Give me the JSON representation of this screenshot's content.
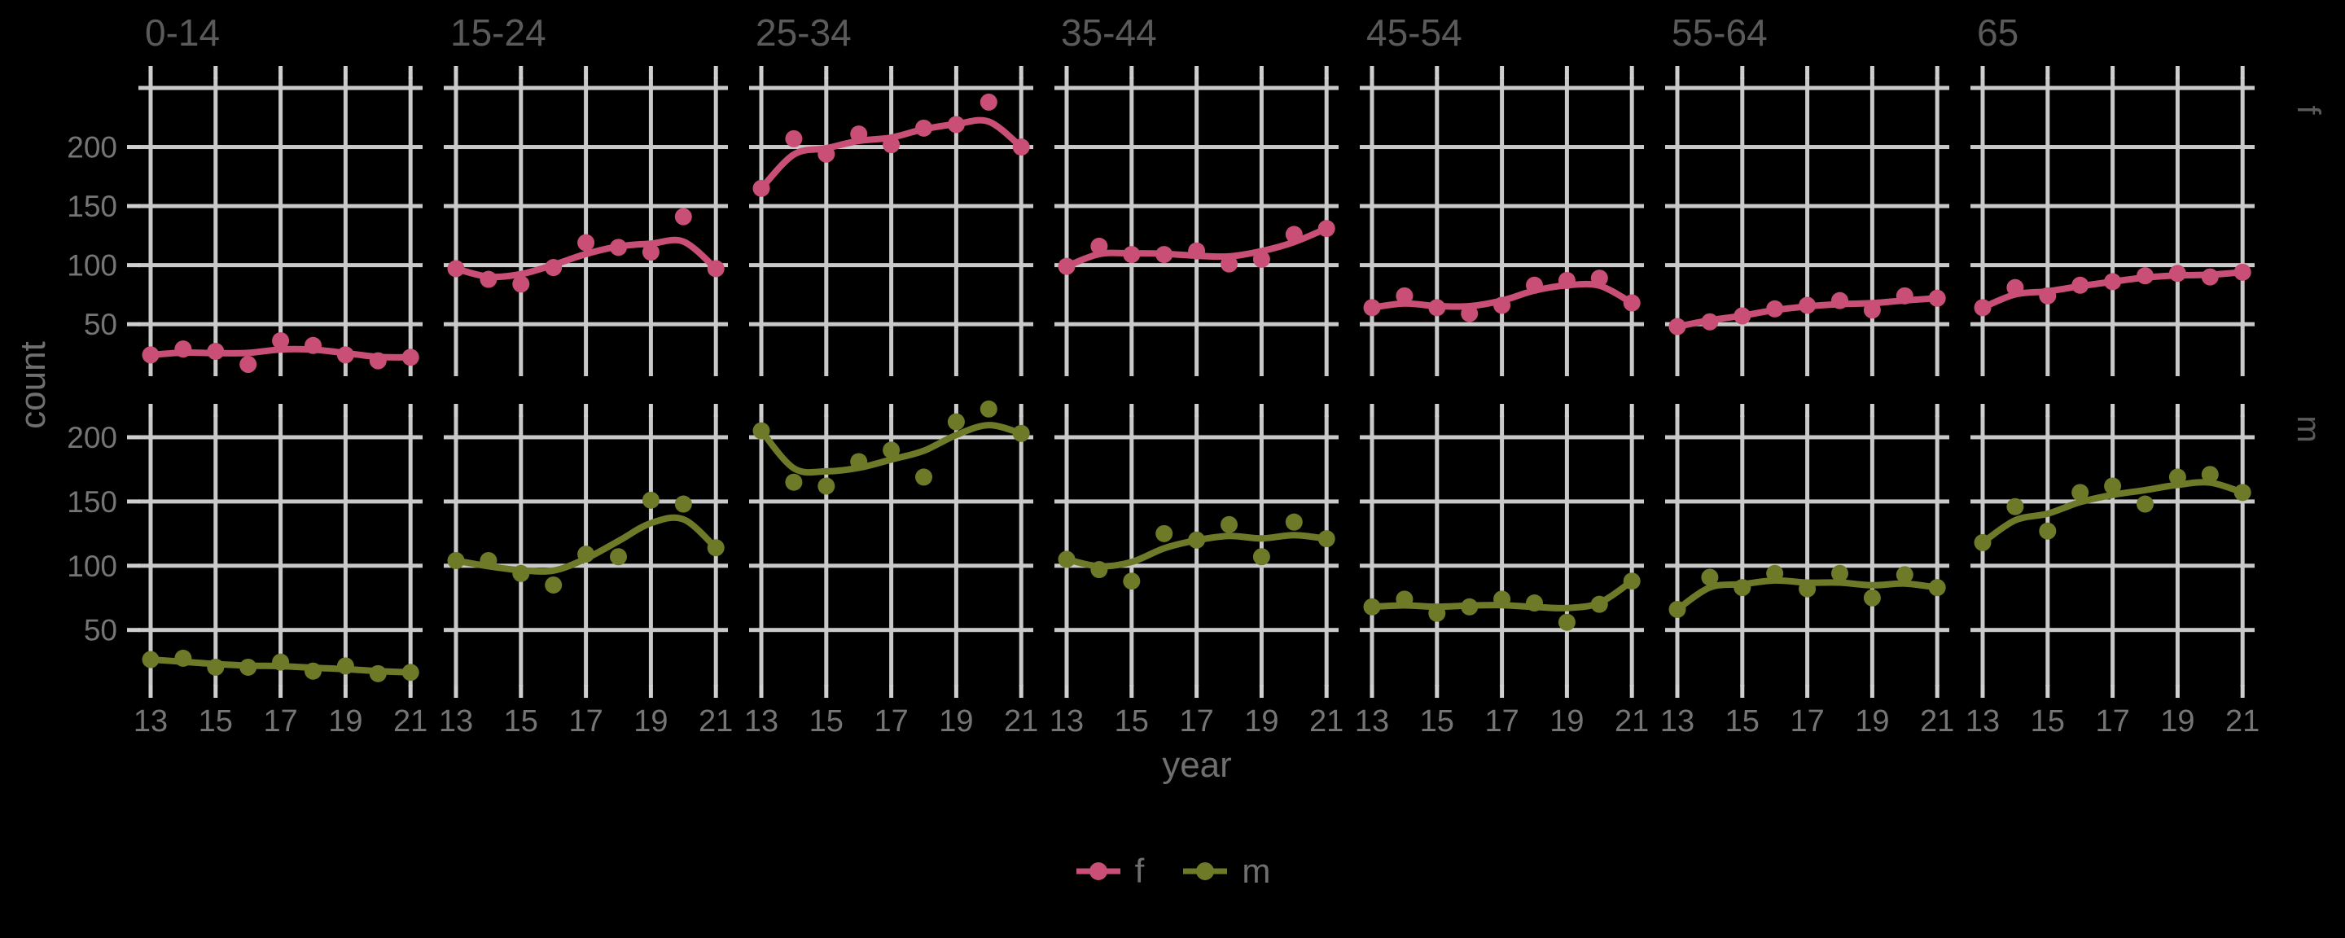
{
  "chart_data": {
    "type": "scatter",
    "title": "",
    "xlabel": "year",
    "ylabel": "count",
    "x": [
      13,
      14,
      15,
      16,
      17,
      18,
      19,
      20,
      21
    ],
    "x_tick_labels": [
      "13",
      "15",
      "17",
      "19",
      "21"
    ],
    "x_ticks": [
      13,
      15,
      17,
      19,
      21
    ],
    "y_ticks": [
      200,
      150,
      100,
      50
    ],
    "y_range_f": [
      5,
      253
    ],
    "y_range_m": [
      5,
      217
    ],
    "grid": true,
    "legend_position": "bottom",
    "col_facets": [
      "0-14",
      "15-24",
      "25-34",
      "35-44",
      "45-54",
      "55-64",
      "65"
    ],
    "row_facets": [
      "f",
      "m"
    ],
    "series_colors": {
      "f": "#c94f76",
      "m": "#6f7a28"
    },
    "smooth": true,
    "values": {
      "f": {
        "0-14": [
          24,
          29,
          27,
          16,
          36,
          32,
          24,
          19,
          22
        ],
        "15-24": [
          97,
          88,
          84,
          98,
          119,
          115,
          111,
          141,
          97
        ],
        "25-34": [
          165,
          207,
          194,
          211,
          202,
          216,
          219,
          238,
          200
        ],
        "35-44": [
          99,
          116,
          109,
          109,
          112,
          101,
          105,
          126,
          131
        ],
        "45-54": [
          64,
          74,
          64,
          59,
          66,
          83,
          87,
          89,
          68
        ],
        "55-64": [
          48,
          52,
          57,
          63,
          66,
          70,
          62,
          74,
          72
        ],
        "65": [
          64,
          81,
          74,
          83,
          86,
          91,
          93,
          90,
          94
        ]
      },
      "m": {
        "0-14": [
          27,
          28,
          21,
          21,
          25,
          18,
          22,
          16,
          17
        ],
        "15-24": [
          104,
          104,
          94,
          85,
          109,
          107,
          151,
          148,
          114
        ],
        "25-34": [
          205,
          165,
          162,
          181,
          190,
          169,
          212,
          222,
          203
        ],
        "35-44": [
          105,
          97,
          88,
          125,
          120,
          132,
          107,
          134,
          121
        ],
        "45-54": [
          68,
          74,
          63,
          68,
          74,
          71,
          56,
          70,
          88
        ],
        "55-64": [
          66,
          91,
          83,
          94,
          82,
          94,
          75,
          93,
          83
        ],
        "65": [
          118,
          146,
          127,
          157,
          162,
          148,
          169,
          171,
          157
        ]
      }
    }
  },
  "legend": {
    "items": [
      {
        "label": "f",
        "color": "#c94f76"
      },
      {
        "label": "m",
        "color": "#6f7a28"
      }
    ]
  },
  "style_colors": {
    "background": "#000000",
    "gridline": "#c9c9c9",
    "tick_mark": "#cfcfcf",
    "facet_title_text": "#5a5a5a",
    "strip_text": "#5a5a5a",
    "tick_label_text": "#757575",
    "axis_label_text": "#6f6f6f",
    "legend_text": "#6f6f6f"
  }
}
